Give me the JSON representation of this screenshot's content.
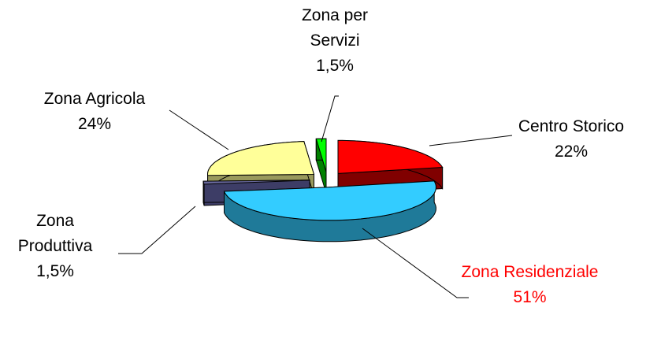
{
  "chart_data": {
    "type": "pie3d",
    "categories": [
      "Centro Storico",
      "Zona Residenziale",
      "Zona Produttiva",
      "Zona Agricola",
      "Zona per Servizi"
    ],
    "values": [
      22,
      51,
      1.5,
      24,
      1.5
    ],
    "value_labels": [
      "22%",
      "51%",
      "1,5%",
      "24%",
      "1,5%"
    ],
    "colors": [
      "#ff0000",
      "#33ccff",
      "#666699",
      "#ffff99",
      "#00ff00"
    ],
    "side_colors": [
      "#800000",
      "#1f7a99",
      "#3d3d66",
      "#99995c",
      "#008000"
    ],
    "label_colors": [
      "#000000",
      "#ff0000",
      "#000000",
      "#000000",
      "#000000"
    ]
  }
}
